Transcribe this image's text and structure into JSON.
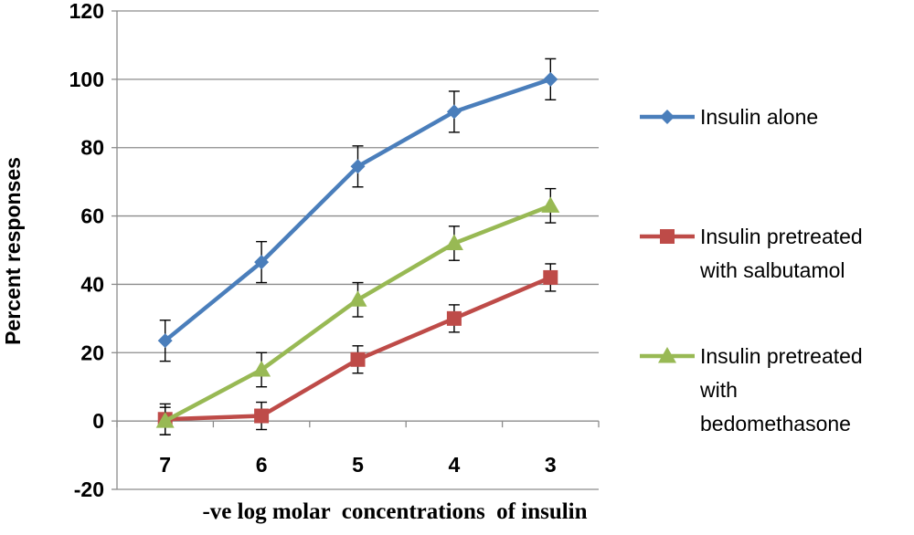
{
  "chart_data": {
    "type": "line",
    "xlabel": "-ve log molar  concentrations  of insulin",
    "ylabel": "Percent responses",
    "categories": [
      "7",
      "6",
      "5",
      "4",
      "3"
    ],
    "ylim": [
      -20,
      120
    ],
    "yticks": [
      -20,
      0,
      20,
      40,
      60,
      80,
      100,
      120
    ],
    "grid": "horizontal",
    "legend_position": "right",
    "error_bars": true,
    "series": [
      {
        "name": "Insulin alone",
        "color": "#4a7ebb",
        "marker": "diamond",
        "values": [
          23.5,
          46.5,
          74.5,
          90.5,
          100
        ],
        "errors": [
          6,
          6,
          6,
          6,
          6
        ]
      },
      {
        "name": "Insulin pretreated with salbutamol",
        "color": "#be4b48",
        "marker": "square",
        "values": [
          0.5,
          1.5,
          18,
          30,
          42
        ],
        "errors": [
          4.5,
          4,
          4,
          4,
          4
        ]
      },
      {
        "name": "Insulin pretreated with bedomethasone",
        "color": "#98b954",
        "marker": "triangle",
        "values": [
          0,
          15,
          35.5,
          52,
          63
        ],
        "errors": [
          4,
          5,
          5,
          5,
          5
        ]
      }
    ],
    "legend_lines": [
      [
        "Insulin alone"
      ],
      [
        "Insulin pretreated",
        "with salbutamol"
      ],
      [
        "Insulin pretreated",
        "with",
        "bedomethasone"
      ]
    ]
  }
}
